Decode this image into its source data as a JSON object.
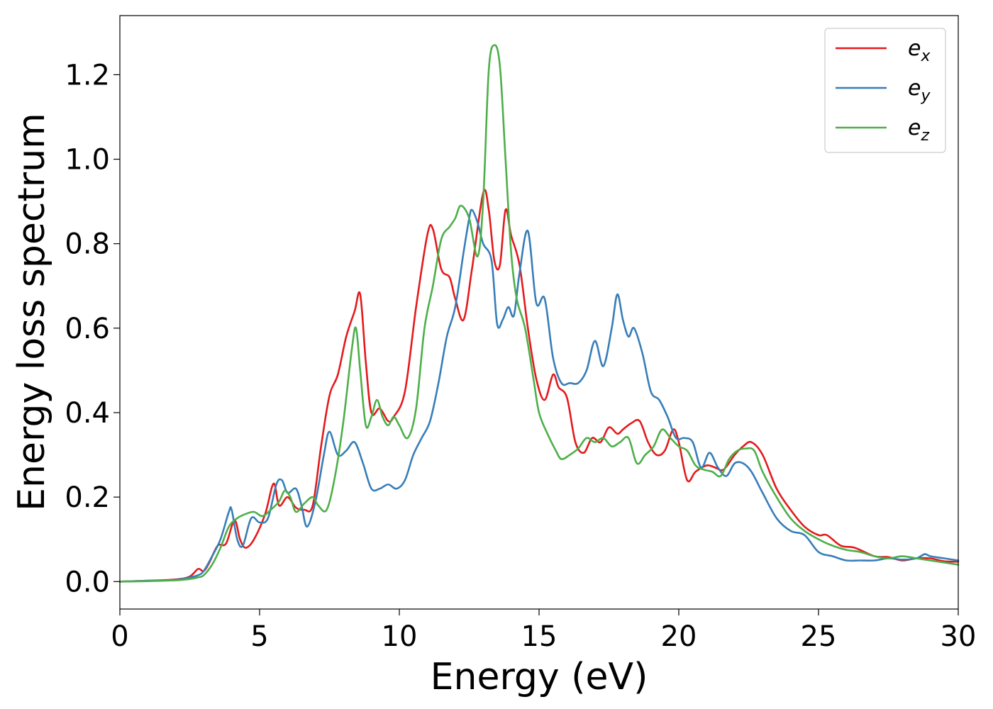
{
  "chart_data": {
    "type": "line",
    "title": "",
    "xlabel": "Energy (eV)",
    "ylabel": "Energy loss spectrum",
    "xlim": [
      0,
      30
    ],
    "ylim": [
      -0.065,
      1.34
    ],
    "x_ticks": [
      0,
      5,
      10,
      15,
      20,
      25,
      30
    ],
    "x_tick_labels": [
      "0",
      "5",
      "10",
      "15",
      "20",
      "25",
      "30"
    ],
    "y_ticks": [
      0.0,
      0.2,
      0.4,
      0.6,
      0.8,
      1.0,
      1.2
    ],
    "y_tick_labels": [
      "0.0",
      "0.2",
      "0.4",
      "0.6",
      "0.8",
      "1.0",
      "1.2"
    ],
    "grid": false,
    "legend_position": "top-right",
    "series": [
      {
        "name": "e_x",
        "legend_base": "e",
        "legend_sub": "x",
        "color": "#e41a1c",
        "x": [
          0,
          1,
          2,
          2.5,
          2.8,
          3.0,
          3.2,
          3.5,
          3.8,
          4.1,
          4.3,
          4.5,
          4.8,
          5.2,
          5.5,
          5.7,
          6.0,
          6.3,
          6.6,
          6.9,
          7.2,
          7.5,
          7.8,
          8.1,
          8.4,
          8.6,
          8.8,
          9.0,
          9.3,
          9.6,
          9.8,
          10.2,
          10.6,
          11.0,
          11.2,
          11.5,
          11.8,
          12.0,
          12.3,
          12.6,
          13.0,
          13.2,
          13.4,
          13.6,
          13.8,
          14.0,
          14.3,
          14.6,
          14.9,
          15.2,
          15.5,
          15.7,
          16.0,
          16.3,
          16.6,
          16.9,
          17.2,
          17.5,
          17.8,
          18.0,
          18.3,
          18.6,
          18.9,
          19.2,
          19.5,
          19.8,
          20.0,
          20.3,
          20.6,
          21.0,
          21.3,
          21.6,
          22.0,
          22.3,
          22.6,
          23.0,
          23.5,
          24.0,
          24.5,
          25.0,
          25.3,
          25.8,
          26.3,
          27.0,
          27.5,
          28.0,
          28.5,
          29.0,
          29.5,
          30.0
        ],
        "y": [
          0.0,
          0.002,
          0.005,
          0.012,
          0.03,
          0.025,
          0.045,
          0.085,
          0.09,
          0.145,
          0.1,
          0.08,
          0.1,
          0.16,
          0.232,
          0.18,
          0.2,
          0.175,
          0.17,
          0.18,
          0.32,
          0.44,
          0.49,
          0.58,
          0.64,
          0.68,
          0.52,
          0.4,
          0.41,
          0.38,
          0.39,
          0.45,
          0.65,
          0.82,
          0.835,
          0.74,
          0.72,
          0.67,
          0.62,
          0.74,
          0.92,
          0.88,
          0.76,
          0.75,
          0.88,
          0.82,
          0.75,
          0.6,
          0.48,
          0.43,
          0.49,
          0.46,
          0.435,
          0.33,
          0.305,
          0.34,
          0.33,
          0.365,
          0.35,
          0.36,
          0.375,
          0.38,
          0.33,
          0.3,
          0.31,
          0.36,
          0.33,
          0.24,
          0.26,
          0.275,
          0.27,
          0.265,
          0.3,
          0.32,
          0.33,
          0.3,
          0.22,
          0.17,
          0.13,
          0.11,
          0.11,
          0.085,
          0.08,
          0.06,
          0.058,
          0.05,
          0.055,
          0.055,
          0.048,
          0.047
        ]
      },
      {
        "name": "e_y",
        "legend_base": "e",
        "legend_sub": "y",
        "color": "#377eb8",
        "x": [
          0,
          1,
          2,
          2.5,
          2.8,
          3.0,
          3.3,
          3.6,
          3.9,
          4.0,
          4.2,
          4.4,
          4.7,
          5.0,
          5.3,
          5.6,
          5.8,
          6.0,
          6.3,
          6.5,
          6.7,
          7.0,
          7.3,
          7.5,
          7.8,
          8.1,
          8.4,
          8.7,
          9.0,
          9.3,
          9.6,
          9.9,
          10.2,
          10.5,
          10.8,
          11.1,
          11.4,
          11.7,
          12.0,
          12.3,
          12.5,
          12.6,
          12.8,
          13.0,
          13.3,
          13.5,
          13.7,
          13.9,
          14.1,
          14.3,
          14.6,
          14.9,
          15.2,
          15.5,
          15.8,
          16.1,
          16.4,
          16.7,
          17.0,
          17.3,
          17.6,
          17.8,
          18.0,
          18.2,
          18.4,
          18.7,
          19.0,
          19.3,
          19.6,
          19.9,
          20.2,
          20.5,
          20.8,
          21.1,
          21.4,
          21.7,
          22.0,
          22.3,
          22.6,
          23.0,
          23.5,
          24.0,
          24.5,
          25.0,
          25.5,
          26.0,
          26.5,
          27.0,
          27.5,
          28.0,
          28.5,
          28.8,
          29.0,
          29.5,
          30.0
        ],
        "y": [
          0.0,
          0.002,
          0.004,
          0.01,
          0.015,
          0.025,
          0.06,
          0.1,
          0.165,
          0.17,
          0.1,
          0.085,
          0.15,
          0.14,
          0.15,
          0.23,
          0.24,
          0.21,
          0.22,
          0.18,
          0.13,
          0.19,
          0.3,
          0.355,
          0.3,
          0.31,
          0.33,
          0.28,
          0.22,
          0.22,
          0.23,
          0.22,
          0.24,
          0.3,
          0.34,
          0.38,
          0.47,
          0.58,
          0.65,
          0.78,
          0.86,
          0.88,
          0.85,
          0.8,
          0.76,
          0.61,
          0.62,
          0.65,
          0.63,
          0.73,
          0.83,
          0.66,
          0.67,
          0.53,
          0.47,
          0.47,
          0.47,
          0.5,
          0.57,
          0.51,
          0.6,
          0.68,
          0.62,
          0.58,
          0.6,
          0.54,
          0.45,
          0.43,
          0.39,
          0.34,
          0.34,
          0.33,
          0.27,
          0.305,
          0.27,
          0.25,
          0.28,
          0.28,
          0.26,
          0.21,
          0.15,
          0.12,
          0.11,
          0.07,
          0.06,
          0.05,
          0.05,
          0.05,
          0.055,
          0.052,
          0.055,
          0.065,
          0.06,
          0.055,
          0.05
        ]
      },
      {
        "name": "e_z",
        "legend_base": "e",
        "legend_sub": "z",
        "color": "#4daf4a",
        "x": [
          0,
          1,
          2,
          2.5,
          2.8,
          3.0,
          3.3,
          3.6,
          3.9,
          4.2,
          4.5,
          4.8,
          5.1,
          5.4,
          5.7,
          5.9,
          6.1,
          6.3,
          6.6,
          6.9,
          7.1,
          7.4,
          7.7,
          8.0,
          8.3,
          8.45,
          8.6,
          8.8,
          9.0,
          9.2,
          9.4,
          9.6,
          9.8,
          10.0,
          10.3,
          10.6,
          10.9,
          11.2,
          11.5,
          11.8,
          12.0,
          12.2,
          12.5,
          12.8,
          13.0,
          13.2,
          13.4,
          13.6,
          13.8,
          14.0,
          14.2,
          14.5,
          14.8,
          15.0,
          15.3,
          15.6,
          15.8,
          16.1,
          16.4,
          16.7,
          17.0,
          17.3,
          17.6,
          17.9,
          18.2,
          18.5,
          18.8,
          19.1,
          19.4,
          19.7,
          20.0,
          20.3,
          20.6,
          20.9,
          21.2,
          21.5,
          21.8,
          22.1,
          22.4,
          22.7,
          23.0,
          23.5,
          24.0,
          24.5,
          25.0,
          25.5,
          26.0,
          26.5,
          27.0,
          27.5,
          28.0,
          28.5,
          29.0,
          29.5,
          30.0
        ],
        "y": [
          0.0,
          0.001,
          0.003,
          0.006,
          0.01,
          0.015,
          0.04,
          0.08,
          0.13,
          0.15,
          0.16,
          0.165,
          0.155,
          0.17,
          0.19,
          0.215,
          0.2,
          0.165,
          0.185,
          0.2,
          0.18,
          0.17,
          0.25,
          0.38,
          0.55,
          0.6,
          0.5,
          0.37,
          0.39,
          0.43,
          0.39,
          0.37,
          0.39,
          0.37,
          0.34,
          0.41,
          0.6,
          0.7,
          0.81,
          0.84,
          0.86,
          0.89,
          0.86,
          0.77,
          0.9,
          1.21,
          1.27,
          1.22,
          1.0,
          0.78,
          0.67,
          0.6,
          0.48,
          0.4,
          0.35,
          0.31,
          0.29,
          0.3,
          0.315,
          0.34,
          0.33,
          0.34,
          0.32,
          0.33,
          0.34,
          0.28,
          0.3,
          0.32,
          0.36,
          0.34,
          0.32,
          0.31,
          0.275,
          0.265,
          0.26,
          0.25,
          0.29,
          0.31,
          0.315,
          0.31,
          0.26,
          0.2,
          0.15,
          0.12,
          0.1,
          0.085,
          0.075,
          0.07,
          0.06,
          0.055,
          0.06,
          0.055,
          0.05,
          0.045,
          0.04
        ]
      }
    ]
  }
}
